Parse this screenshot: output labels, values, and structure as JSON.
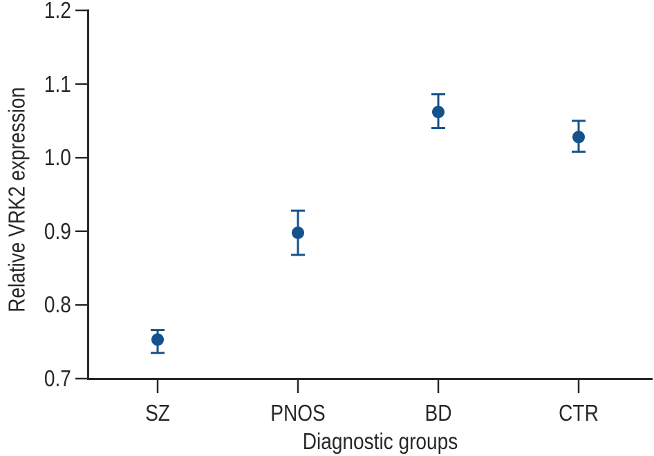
{
  "chart_data": {
    "type": "scatter",
    "title": "",
    "xlabel": "Diagnostic groups",
    "ylabel": "Relative VRK2 expression",
    "categories": [
      "SZ",
      "PNOS",
      "BD",
      "CTR"
    ],
    "series": [
      {
        "name": "Relative VRK2 expression mean with error bars",
        "values": [
          0.753,
          0.898,
          1.062,
          1.028
        ],
        "ci_low": [
          0.735,
          0.868,
          1.04,
          1.008
        ],
        "ci_high": [
          0.766,
          0.928,
          1.086,
          1.05
        ]
      }
    ],
    "ylim": [
      0.7,
      1.2
    ],
    "yticks": [
      "0.7",
      "0.8",
      "0.9",
      "1.0",
      "1.1",
      "1.2"
    ],
    "grid": false,
    "legend": false,
    "marker_color": "#15518b",
    "axis_color": "#2b2728"
  }
}
